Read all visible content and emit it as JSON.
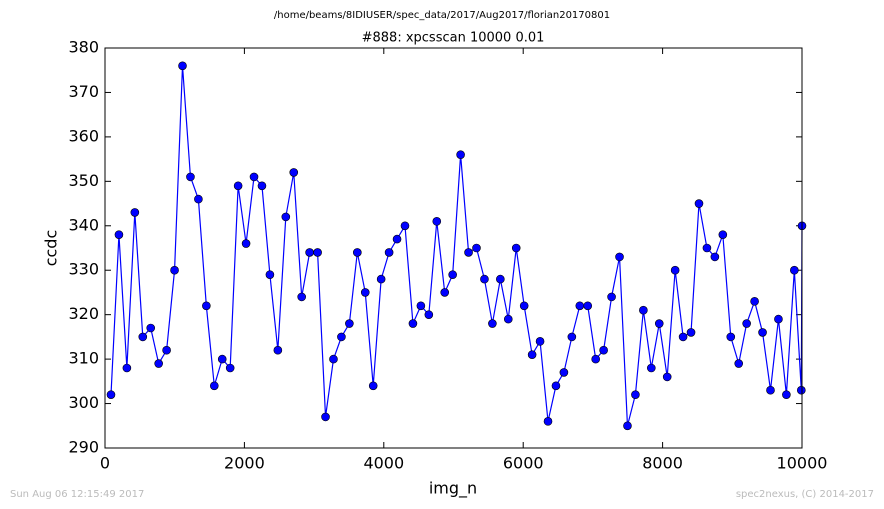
{
  "chart_data": {
    "type": "line",
    "suptitle": "/home/beams/8IDIUSER/spec_data/2017/Aug2017/florian20170801",
    "title": "#888: xpcsscan 10000 0.01",
    "x_label": "img_n",
    "y_label": "ccdc",
    "footer_left": "Sun Aug 06 12:15:49 2017",
    "footer_right": "spec2nexus, (C) 2014-2017",
    "color": "#0000ff",
    "x": [
      86,
      200,
      314,
      428,
      542,
      656,
      770,
      884,
      998,
      1112,
      1226,
      1340,
      1454,
      1568,
      1682,
      1796,
      1910,
      2024,
      2138,
      2252,
      2366,
      2480,
      2594,
      2708,
      2822,
      2936,
      3050,
      3164,
      3278,
      3392,
      3506,
      3620,
      3734,
      3848,
      3962,
      4076,
      4190,
      4304,
      4418,
      4532,
      4646,
      4760,
      4874,
      4988,
      5102,
      5216,
      5330,
      5444,
      5558,
      5672,
      5786,
      5900,
      6014,
      6128,
      6242,
      6356,
      6470,
      6584,
      6698,
      6812,
      6926,
      7040,
      7154,
      7268,
      7382,
      7496,
      7610,
      7724,
      7838,
      7952,
      8066,
      8180,
      8294,
      8408,
      8522,
      8636,
      8750,
      8864,
      8978,
      9092,
      9206,
      9320,
      9434,
      9548,
      9662,
      9776,
      9890,
      9990,
      10000
    ],
    "values": [
      302,
      338,
      308,
      343,
      315,
      317,
      309,
      312,
      330,
      376,
      351,
      346,
      322,
      304,
      310,
      308,
      349,
      336,
      351,
      349,
      329,
      312,
      342,
      352,
      324,
      334,
      334,
      297,
      310,
      315,
      318,
      334,
      325,
      304,
      328,
      334,
      337,
      340,
      318,
      322,
      320,
      341,
      325,
      329,
      356,
      334,
      335,
      328,
      318,
      328,
      319,
      335,
      322,
      311,
      314,
      296,
      304,
      307,
      315,
      322,
      322,
      310,
      312,
      324,
      333,
      295,
      302,
      321,
      308,
      318,
      306,
      330,
      315,
      316,
      345,
      335,
      333,
      338,
      315,
      309,
      318,
      323,
      316,
      303,
      319,
      302,
      330,
      303,
      340
    ],
    "xlim": [
      0,
      10000
    ],
    "ylim": [
      290,
      380
    ],
    "xticks": [
      0,
      2000,
      4000,
      6000,
      8000,
      10000
    ],
    "yticks": [
      290,
      300,
      310,
      320,
      330,
      340,
      350,
      360,
      370,
      380
    ]
  }
}
